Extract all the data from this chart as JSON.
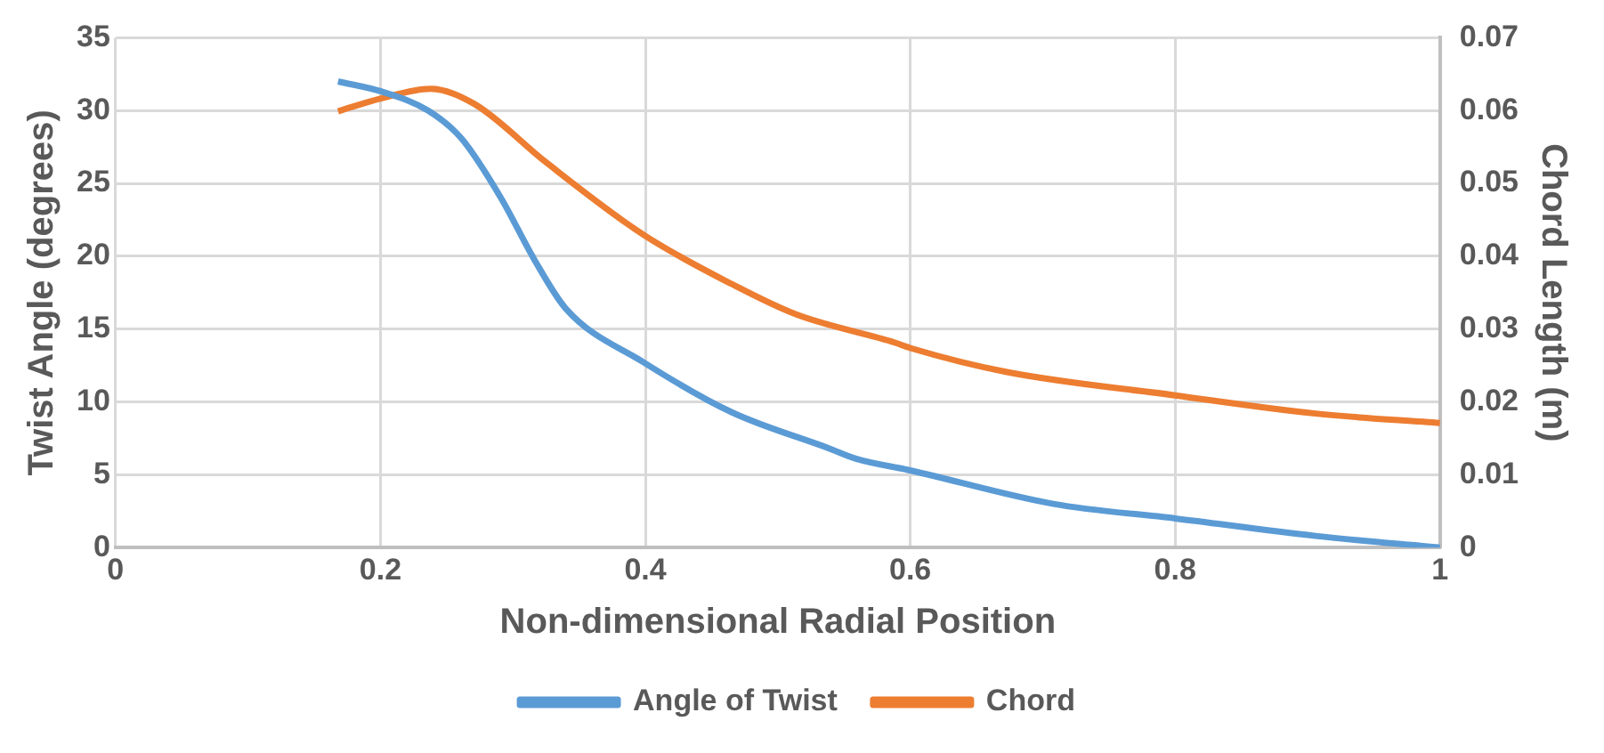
{
  "chart_data": {
    "type": "line",
    "xlabel": "Non-dimensional Radial Position",
    "ylabel": "Twist Angle (degrees)",
    "y2label": "Chord Length (m)",
    "xlim": [
      0,
      1
    ],
    "xticks": [
      0,
      0.2,
      0.4,
      0.6,
      0.8,
      1
    ],
    "ylim": [
      0,
      35
    ],
    "yticks": [
      0,
      5,
      10,
      15,
      20,
      25,
      30,
      35
    ],
    "y2lim": [
      0,
      0.07
    ],
    "y2ticks": [
      0,
      0.01,
      0.02,
      0.03,
      0.04,
      0.05,
      0.06,
      0.07
    ],
    "grid": true,
    "legend": "bottom",
    "marker": "none",
    "line_style": "solid",
    "series": [
      {
        "name": "Angle of Twist",
        "color": "#5b9bd5",
        "x": [
          0.168,
          0.201,
          0.236,
          0.261,
          0.291,
          0.316,
          0.34,
          0.399,
          0.465,
          0.539,
          0.559,
          0.6,
          0.708,
          0.8,
          0.906,
          1.0
        ],
        "values": [
          32.0,
          31.3,
          30.0,
          28.1,
          24.0,
          19.8,
          16.4,
          12.7,
          9.3,
          6.8,
          6.1,
          5.3,
          3.0,
          2.0,
          0.8,
          0.0
        ]
      },
      {
        "name": "Chord",
        "color": "#ed7d31",
        "axis": "y2",
        "x": [
          0.168,
          0.201,
          0.238,
          0.271,
          0.325,
          0.399,
          0.465,
          0.514,
          0.589,
          0.6,
          0.673,
          0.8,
          0.906,
          1.0
        ],
        "values": [
          0.0599,
          0.0617,
          0.063,
          0.0609,
          0.0529,
          0.0429,
          0.0362,
          0.032,
          0.0281,
          0.0274,
          0.0241,
          0.0209,
          0.0184,
          0.0171
        ]
      }
    ]
  }
}
